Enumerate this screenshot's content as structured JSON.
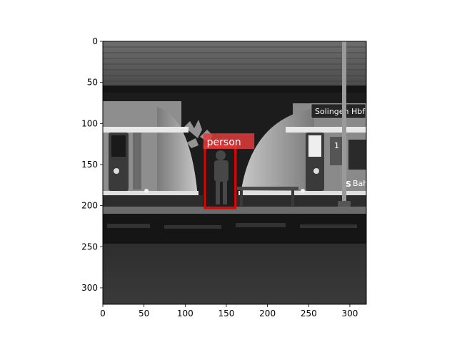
{
  "figure": {
    "image_extent": {
      "x_range": [
        0,
        320
      ],
      "y_range": [
        320,
        0
      ]
    },
    "x_ticks": [
      0,
      50,
      100,
      150,
      200,
      250,
      300
    ],
    "y_ticks": [
      0,
      50,
      100,
      150,
      200,
      250,
      300
    ]
  },
  "scene": {
    "sign_text": "Solingen Hbf",
    "train_door_numeral": "1",
    "train_side_mark": "S",
    "train_side_text": "Bahn"
  },
  "detection": {
    "label": "person",
    "box": {
      "x0": 124,
      "y0": 128,
      "x1": 161,
      "y1": 203
    },
    "label_box": {
      "x0": 122,
      "y0": 112,
      "x1": 184,
      "y1": 131
    },
    "box_color": "#e60000",
    "label_bg_color": "#e23b3b"
  }
}
